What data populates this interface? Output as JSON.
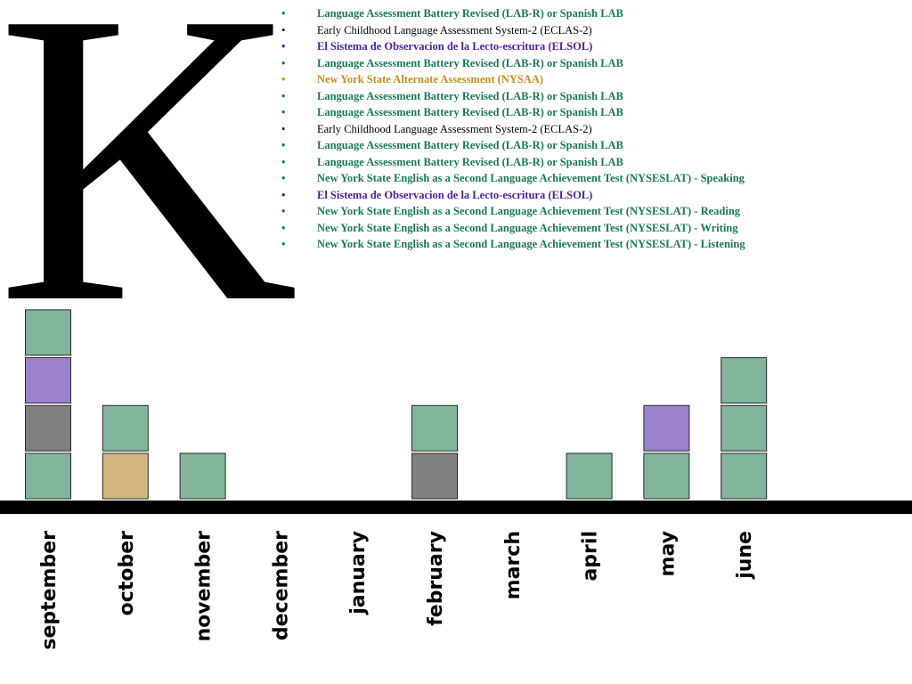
{
  "grade_letter": "K",
  "legend": [
    {
      "text": "Language Assessment Battery Revised (LAB-R) or Spanish LAB",
      "color": "#1a7a50",
      "bold": true
    },
    {
      "text": "Early Childhood Language Assessment System-2 (ECLAS-2)",
      "color": "#000000",
      "bold": false
    },
    {
      "text": "El Sistema de Observacion de la Lecto-escritura (ELSOL)",
      "color": "#4b1fa0",
      "bold": true
    },
    {
      "text": "Language Assessment Battery Revised (LAB-R) or Spanish LAB",
      "color": "#1a7a50",
      "bold": true
    },
    {
      "text": "New York State Alternate Assessment (NYSAA)",
      "color": "#c0901a",
      "bold": true
    },
    {
      "text": "Language Assessment Battery Revised (LAB-R) or Spanish LAB",
      "color": "#1a7a50",
      "bold": true
    },
    {
      "text": "Language Assessment Battery Revised (LAB-R) or Spanish LAB",
      "color": "#1a7a50",
      "bold": true
    },
    {
      "text": "Early Childhood Language Assessment System-2 (ECLAS-2)",
      "color": "#000000",
      "bold": false
    },
    {
      "text": "Language Assessment Battery Revised (LAB-R) or Spanish LAB",
      "color": "#1a7a50",
      "bold": true
    },
    {
      "text": "Language Assessment Battery Revised (LAB-R) or Spanish LAB",
      "color": "#1a7a50",
      "bold": true
    },
    {
      "text": "New York State English as a Second Language Achievement Test (NYSESLAT) - Speaking",
      "color": "#1a7a50",
      "bold": true
    },
    {
      "text": "El Sistema de Observacion de la Lecto-escritura (ELSOL)",
      "color": "#4b1fa0",
      "bold": true
    },
    {
      "text": "New York State English as a Second Language Achievement Test (NYSESLAT) - Reading",
      "color": "#1a7a50",
      "bold": true
    },
    {
      "text": "New York State English as a Second Language Achievement Test (NYSESLAT) - Writing",
      "color": "#1a7a50",
      "bold": true
    },
    {
      "text": "New York State English as a Second Language Achievement Test (NYSESLAT) - Listening",
      "color": "#1a7a50",
      "bold": true
    }
  ],
  "chart_data": {
    "type": "bar",
    "stacked": true,
    "categories": [
      "september",
      "october",
      "november",
      "december",
      "january",
      "february",
      "march",
      "april",
      "may",
      "june"
    ],
    "values": [
      4,
      2,
      1,
      0,
      0,
      2,
      0,
      1,
      2,
      3
    ],
    "blocks": [
      [
        "green",
        "gray",
        "purple",
        "green"
      ],
      [
        "tan",
        "green"
      ],
      [
        "green"
      ],
      [],
      [],
      [
        "gray",
        "green"
      ],
      [],
      [
        "green"
      ],
      [
        "green",
        "purple"
      ],
      [
        "green",
        "green",
        "green"
      ]
    ],
    "block_colors": {
      "green": "#82b59b",
      "gray": "#808080",
      "purple": "#9b82cc",
      "tan": "#d1b680"
    },
    "axis_color": "#000000"
  }
}
